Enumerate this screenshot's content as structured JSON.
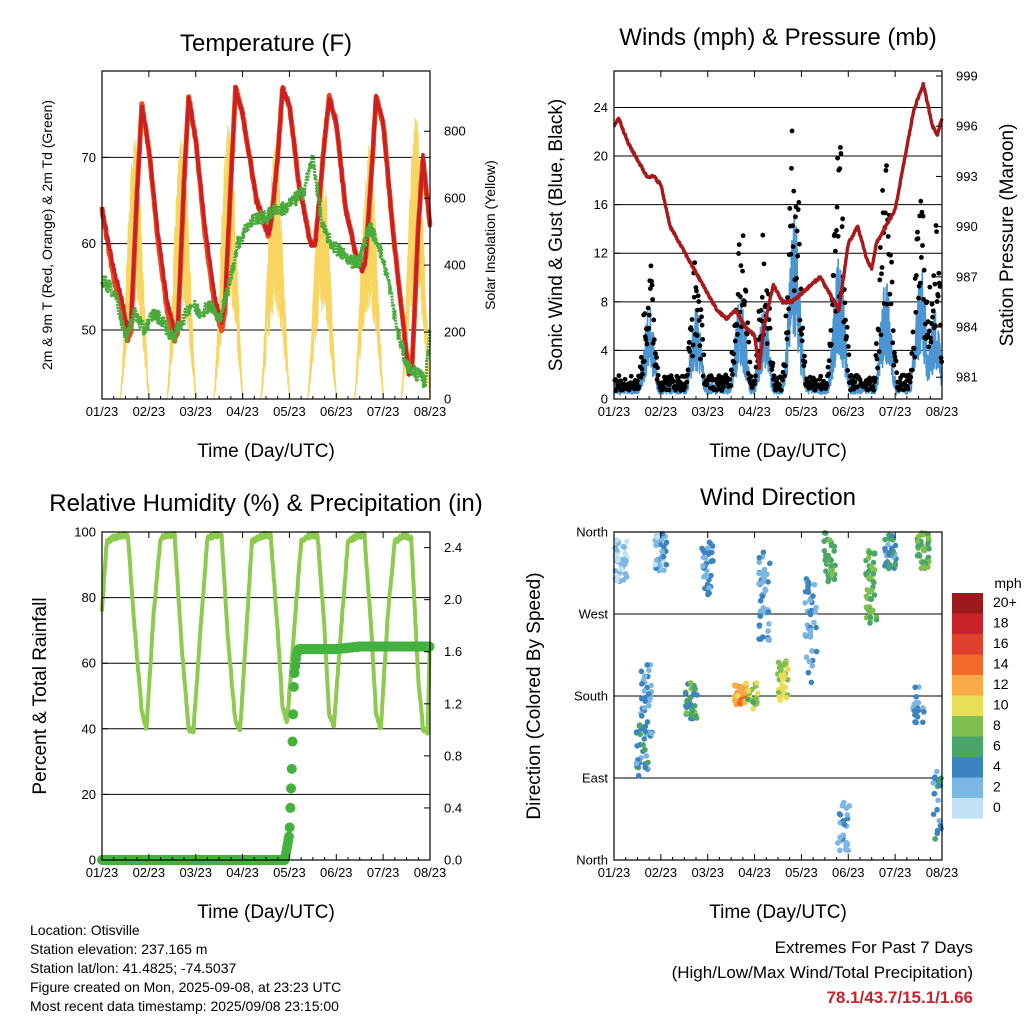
{
  "colors": {
    "t2m": "#e84e1b",
    "t9m": "#cc1f24",
    "td": "#4aaa3c",
    "solar": "#f7d460",
    "wind": "#4b96d2",
    "gust": "#000000",
    "pressure": "#a8191d",
    "rh": "#8ec950",
    "precip": "#43b23f",
    "extremes": "#c8242b"
  },
  "x_ticks": [
    "01/23",
    "02/23",
    "03/23",
    "04/23",
    "05/23",
    "06/23",
    "07/23",
    "08/23"
  ],
  "info": {
    "location": "Location: Otisville",
    "elevation": "Station elevation: 237.165 m",
    "latlon": "Station lat/lon: 41.4825; -74.5037",
    "created": "Figure created on Mon, 2025-09-08, at 23:23 UTC",
    "recent": "Most recent data timestamp: 2025/09/08 23:15:00"
  },
  "extremes": {
    "title": "Extremes For Past 7 Days",
    "subtitle": "(High/Low/Max Wind/Total Precipitation)",
    "values": "78.1/43.7/15.1/1.66"
  },
  "chart_data": [
    {
      "type": "line",
      "title": "Temperature (F)",
      "xlabel": "Time (Day/UTC)",
      "ylabel": "2m & 9m T (Red, Orange) & 2m Td (Green)",
      "y2label": "Solar Insolation (Yellow)",
      "ylim": [
        42,
        80
      ],
      "y_ticks": [
        50,
        60,
        70
      ],
      "y2lim": [
        0,
        980
      ],
      "y2_ticks": [
        0,
        200,
        400,
        600,
        800
      ],
      "x_days": [
        0,
        7
      ],
      "series": [
        {
          "name": "2m T",
          "x": [
            0,
            0.25,
            0.45,
            0.55,
            0.62,
            0.75,
            0.85,
            1.0,
            1.2,
            1.4,
            1.55,
            1.62,
            1.75,
            1.85,
            2.0,
            2.2,
            2.4,
            2.55,
            2.62,
            2.75,
            2.85,
            3.0,
            3.3,
            3.55,
            3.62,
            3.75,
            3.85,
            4.0,
            4.2,
            4.45,
            4.55,
            4.62,
            4.75,
            4.85,
            5.0,
            5.2,
            5.45,
            5.55,
            5.62,
            5.75,
            5.85,
            6.0,
            6.2,
            6.4,
            6.55,
            6.62,
            6.75,
            6.85,
            7.0
          ],
          "values": [
            64,
            56,
            52,
            49,
            50,
            66,
            76,
            71,
            60,
            52,
            49,
            50,
            67,
            77,
            72,
            61,
            53,
            50,
            52,
            67,
            78,
            75,
            65,
            61,
            63,
            70,
            78,
            76,
            67,
            60,
            60,
            64,
            72,
            77,
            74,
            64,
            58,
            57,
            58,
            68,
            77,
            74,
            62,
            52,
            45,
            46,
            62,
            70,
            62
          ]
        },
        {
          "name": "9m T",
          "x": [
            0,
            0.25,
            0.45,
            0.55,
            0.62,
            0.75,
            0.85,
            1.0,
            1.2,
            1.4,
            1.55,
            1.62,
            1.75,
            1.85,
            2.0,
            2.2,
            2.4,
            2.55,
            2.62,
            2.75,
            2.85,
            3.0,
            3.3,
            3.55,
            3.62,
            3.75,
            3.85,
            4.0,
            4.2,
            4.45,
            4.55,
            4.62,
            4.75,
            4.85,
            5.0,
            5.2,
            5.45,
            5.55,
            5.62,
            5.75,
            5.85,
            6.0,
            6.2,
            6.4,
            6.55,
            6.62,
            6.75,
            6.85,
            7.0
          ],
          "values": [
            64,
            57,
            53,
            50,
            51,
            66,
            76,
            71,
            61,
            53,
            50,
            51,
            67,
            77,
            72,
            62,
            54,
            51,
            53,
            67,
            78,
            75,
            65,
            61,
            63,
            70,
            78,
            76,
            67,
            60,
            60,
            64,
            72,
            77,
            74,
            64,
            58,
            57,
            58,
            68,
            77,
            74,
            62,
            52,
            45,
            46,
            62,
            70,
            62
          ]
        },
        {
          "name": "2m Td",
          "x": [
            0,
            0.3,
            0.5,
            0.7,
            0.9,
            1.1,
            1.3,
            1.5,
            1.7,
            1.9,
            2.1,
            2.3,
            2.5,
            2.7,
            2.9,
            3.1,
            3.3,
            3.5,
            3.7,
            3.9,
            4.1,
            4.3,
            4.5,
            4.7,
            4.9,
            5.1,
            5.3,
            5.5,
            5.7,
            5.9,
            6.1,
            6.3,
            6.5,
            6.7,
            6.9,
            7.0
          ],
          "values": [
            56,
            54,
            49,
            52,
            50,
            52,
            51,
            49,
            51,
            53,
            52,
            53,
            51,
            55,
            60,
            62,
            63,
            63,
            64,
            64,
            65,
            66,
            70,
            62,
            60,
            59,
            58,
            58,
            62,
            60,
            56,
            50,
            46,
            45,
            44,
            50
          ]
        },
        {
          "name": "Solar",
          "axis": "y2",
          "peaks_x": [
            0.7,
            1.7,
            2.7,
            3.7,
            4.7,
            5.7,
            6.7
          ],
          "peaks": [
            780,
            800,
            840,
            760,
            720,
            760,
            850
          ]
        }
      ]
    },
    {
      "type": "line",
      "title": "Winds (mph) & Pressure (mb)",
      "xlabel": "Time (Day/UTC)",
      "ylabel": "Sonic Wind & Gust (Blue, Black)",
      "y2label": "Station Pressure (Maroon)",
      "ylim": [
        0,
        27
      ],
      "y_ticks": [
        0,
        4,
        8,
        12,
        16,
        20,
        24
      ],
      "y2lim": [
        979.7,
        999.3
      ],
      "y2_ticks": [
        981,
        984,
        987,
        990,
        993,
        996,
        999
      ],
      "x_days": [
        0,
        7
      ],
      "series": [
        {
          "name": "Wind",
          "peaks_x": [
            0.75,
            1.75,
            2.7,
            3.2,
            3.85,
            4.8,
            5.8,
            6.55,
            6.85
          ],
          "peaks": [
            7,
            7,
            8,
            7,
            14,
            11,
            9,
            10,
            7
          ]
        },
        {
          "name": "Gust",
          "peaks_x": [
            0.75,
            1.75,
            2.7,
            3.2,
            3.85,
            4.8,
            5.8,
            6.55,
            6.85
          ],
          "peaks": [
            12,
            12,
            16,
            14,
            25,
            22,
            22,
            18,
            15
          ]
        },
        {
          "name": "Pressure",
          "axis": "y2",
          "x": [
            0,
            0.1,
            0.3,
            0.5,
            0.7,
            0.85,
            1.0,
            1.2,
            1.4,
            1.6,
            1.8,
            2.0,
            2.2,
            2.4,
            2.6,
            2.8,
            3.0,
            3.1,
            3.2,
            3.4,
            3.6,
            3.8,
            4.0,
            4.2,
            4.4,
            4.6,
            4.8,
            5.0,
            5.2,
            5.4,
            5.5,
            5.6,
            5.8,
            6.0,
            6.2,
            6.4,
            6.6,
            6.8,
            6.9,
            7.0
          ],
          "values": [
            996,
            996.5,
            995,
            994,
            993,
            993,
            992.5,
            990,
            989,
            988,
            987,
            986,
            985,
            984.5,
            985,
            984,
            983.5,
            981.5,
            984,
            986.5,
            985.5,
            985.5,
            986,
            986.5,
            987,
            986,
            985,
            989,
            990,
            988,
            987.5,
            989,
            990,
            991,
            994,
            997,
            998.5,
            996,
            995.5,
            996.5
          ]
        }
      ]
    },
    {
      "type": "line",
      "title": "Relative Humidity (%) & Precipitation (in)",
      "xlabel": "Time (Day/UTC)",
      "ylabel": "Percent & Total Rainfall",
      "ylim": [
        0,
        100
      ],
      "y_ticks": [
        0,
        20,
        40,
        60,
        80,
        100
      ],
      "y2lim": [
        0,
        2.52
      ],
      "y2_ticks": [
        "0.0",
        "0.4",
        "0.8",
        "1.2",
        "1.6",
        "2.0",
        "2.4"
      ],
      "x_days": [
        0,
        7
      ],
      "series": [
        {
          "name": "RH",
          "x": [
            0,
            0.1,
            0.2,
            0.4,
            0.55,
            0.7,
            0.85,
            0.95,
            1.1,
            1.25,
            1.4,
            1.55,
            1.7,
            1.85,
            1.95,
            2.1,
            2.25,
            2.4,
            2.55,
            2.7,
            2.85,
            2.95,
            3.2,
            3.45,
            3.6,
            3.75,
            3.85,
            3.95,
            4.1,
            4.25,
            4.45,
            4.6,
            4.75,
            4.85,
            4.95,
            5.1,
            5.25,
            5.45,
            5.6,
            5.75,
            5.85,
            5.95,
            6.1,
            6.25,
            6.45,
            6.6,
            6.75,
            6.85,
            6.95,
            7.0
          ],
          "values": [
            76,
            97,
            98,
            99,
            99,
            70,
            45,
            40,
            75,
            98,
            99,
            99,
            65,
            40,
            39,
            70,
            98,
            99,
            99,
            65,
            42,
            40,
            97,
            99,
            99,
            70,
            47,
            42,
            70,
            97,
            99,
            99,
            70,
            44,
            41,
            70,
            97,
            99,
            99,
            70,
            44,
            40,
            75,
            97,
            99,
            98,
            55,
            40,
            39,
            70
          ]
        },
        {
          "name": "Precip",
          "axis": "y2",
          "x": [
            0,
            3.9,
            4.0,
            4.05,
            4.1,
            4.15,
            4.2,
            5.0,
            5.5,
            7.0
          ],
          "values": [
            0,
            0,
            0.2,
            0.7,
            1.4,
            1.58,
            1.62,
            1.62,
            1.64,
            1.64
          ]
        }
      ]
    },
    {
      "type": "scatter",
      "title": "Wind Direction",
      "xlabel": "Time (Day/UTC)",
      "ylabel": "Direction (Colored By Speed)",
      "ylim": [
        0,
        360
      ],
      "y_ticks": [
        {
          "v": 0,
          "label": "North"
        },
        {
          "v": 90,
          "label": "East"
        },
        {
          "v": 180,
          "label": "South"
        },
        {
          "v": 270,
          "label": "West"
        },
        {
          "v": 360,
          "label": "North"
        }
      ],
      "x_days": [
        0,
        7
      ],
      "legend": {
        "title": "mph",
        "labels": [
          "20+",
          "18",
          "16",
          "14",
          "12",
          "10",
          "8",
          "6",
          "4",
          "2",
          "0"
        ],
        "colors": [
          "#9c1a1c",
          "#c8222a",
          "#e0412c",
          "#f06a2a",
          "#f9a945",
          "#e8de58",
          "#7fbf4f",
          "#4aa56a",
          "#3c84bf",
          "#7cb6e2",
          "#c1e1f5"
        ]
      },
      "clusters": [
        {
          "x": 0.15,
          "y": 330,
          "spread": 25,
          "n": 40,
          "speed": 1
        },
        {
          "x": 0.6,
          "y": 120,
          "spread": 30,
          "n": 30,
          "speed": 4
        },
        {
          "x": 0.7,
          "y": 175,
          "spread": 40,
          "n": 35,
          "speed": 3
        },
        {
          "x": 1.0,
          "y": 340,
          "spread": 25,
          "n": 30,
          "speed": 2
        },
        {
          "x": 1.65,
          "y": 175,
          "spread": 20,
          "n": 40,
          "speed": 6
        },
        {
          "x": 2.0,
          "y": 320,
          "spread": 30,
          "n": 35,
          "speed": 3
        },
        {
          "x": 2.7,
          "y": 182,
          "spread": 12,
          "n": 45,
          "speed": 12
        },
        {
          "x": 2.95,
          "y": 180,
          "spread": 15,
          "n": 20,
          "speed": 8
        },
        {
          "x": 3.2,
          "y": 290,
          "spread": 50,
          "n": 40,
          "speed": 3
        },
        {
          "x": 3.6,
          "y": 200,
          "spread": 25,
          "n": 35,
          "speed": 9
        },
        {
          "x": 4.2,
          "y": 250,
          "spread": 60,
          "n": 40,
          "speed": 3
        },
        {
          "x": 4.6,
          "y": 330,
          "spread": 30,
          "n": 35,
          "speed": 7
        },
        {
          "x": 4.9,
          "y": 40,
          "spread": 30,
          "n": 25,
          "speed": 3
        },
        {
          "x": 5.5,
          "y": 300,
          "spread": 40,
          "n": 45,
          "speed": 7
        },
        {
          "x": 5.9,
          "y": 340,
          "spread": 20,
          "n": 35,
          "speed": 4
        },
        {
          "x": 6.6,
          "y": 340,
          "spread": 20,
          "n": 40,
          "speed": 7
        },
        {
          "x": 6.5,
          "y": 170,
          "spread": 20,
          "n": 20,
          "speed": 3
        },
        {
          "x": 6.9,
          "y": 60,
          "spread": 40,
          "n": 25,
          "speed": 4
        }
      ]
    }
  ]
}
